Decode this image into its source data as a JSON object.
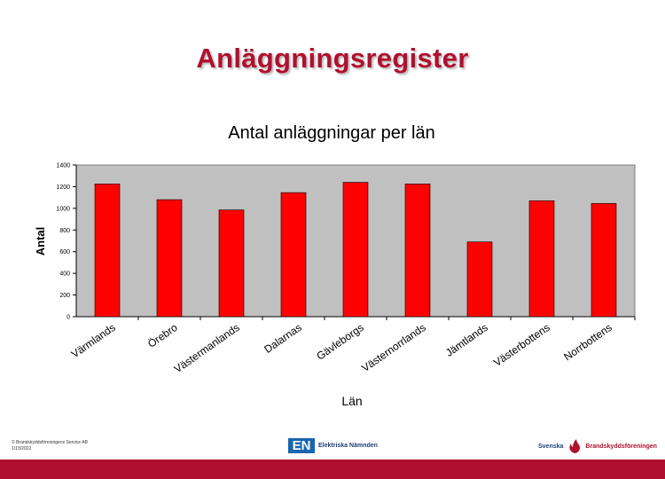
{
  "slide": {
    "title": "Anläggningsregister"
  },
  "chart_data": {
    "type": "bar",
    "title": "Antal anläggningar per län",
    "xlabel": "Län",
    "ylabel": "Antal",
    "ylim": [
      0,
      1400
    ],
    "yticks": [
      0,
      200,
      400,
      600,
      800,
      1000,
      1200,
      1400
    ],
    "categories": [
      "Värmlands",
      "Örebro",
      "Västermanlands",
      "Dalarnas",
      "Gävleborgs",
      "Västernorrlands",
      "Jämtlands",
      "Västerbottens",
      "Norrbottens"
    ],
    "values": [
      1225,
      1080,
      985,
      1145,
      1240,
      1225,
      690,
      1070,
      1045
    ],
    "grid": false,
    "legend": "none",
    "colors": {
      "bar": "#ff0000",
      "plot_background": "#c0c0c0"
    }
  },
  "footer": {
    "copyright": "© Brandskyddsföreningens Service AB",
    "date": "1/13/2022",
    "en_logo_mark": "EN",
    "en_logo_text": "Elektriska Nämnden",
    "sbf_logo_left": "Svenska",
    "sbf_logo_right": "Brandskyddsföreningen"
  },
  "colors": {
    "accent": "#b0102e"
  }
}
